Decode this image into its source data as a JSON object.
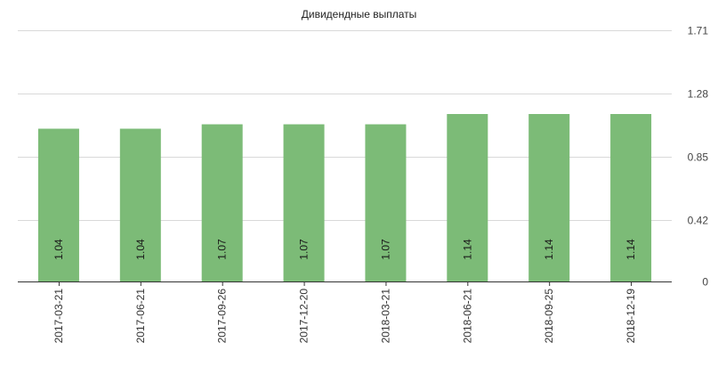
{
  "chart_data": {
    "type": "bar",
    "title": "Дивидендные выплаты",
    "xlabel": "",
    "ylabel": "",
    "categories": [
      "2017-03-21",
      "2017-06-21",
      "2017-09-26",
      "2017-12-20",
      "2018-03-21",
      "2018-06-21",
      "2018-09-25",
      "2018-12-19"
    ],
    "values": [
      1.04,
      1.04,
      1.07,
      1.07,
      1.07,
      1.14,
      1.14,
      1.14
    ],
    "data_labels": [
      "1.04",
      "1.04",
      "1.07",
      "1.07",
      "1.07",
      "1.14",
      "1.14",
      "1.14"
    ],
    "y_ticks": [
      0,
      0.42,
      0.85,
      1.28,
      1.71
    ],
    "y_tick_labels": [
      "0",
      "0.42",
      "0.85",
      "1.28",
      "1.71"
    ],
    "ylim": [
      0,
      1.71
    ],
    "y_axis_side": "right",
    "grid": true,
    "legend": false,
    "bar_color": "#7cbb77"
  }
}
